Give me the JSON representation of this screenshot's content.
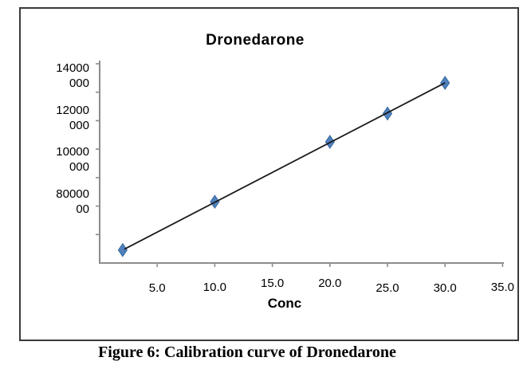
{
  "figure": {
    "caption": "Figure 6: Calibration curve of Dronedarone"
  },
  "chart_data": {
    "type": "scatter",
    "title": "Dronedarone",
    "xlabel": "Conc",
    "ylabel": "",
    "legend": "none",
    "grid": false,
    "xlim": [
      0,
      35
    ],
    "ylim": [
      4000000,
      14500000
    ],
    "x_ticks": [
      {
        "value": 5,
        "label": "5.0"
      },
      {
        "value": 10,
        "label": "10.0"
      },
      {
        "value": 15,
        "label": "15.0"
      },
      {
        "value": 20,
        "label": "20.0"
      },
      {
        "value": 25,
        "label": "25.0"
      },
      {
        "value": 30,
        "label": "30.0"
      },
      {
        "value": 35,
        "label": "35.0"
      }
    ],
    "y_ticks": [
      {
        "value": 14000000,
        "lines": [
          "14000",
          "000"
        ]
      },
      {
        "value": 12000000,
        "lines": [
          "12000",
          "000"
        ]
      },
      {
        "value": 10000000,
        "lines": [
          "10000",
          "000"
        ]
      },
      {
        "value": 8000000,
        "lines": [
          "80000",
          "00"
        ]
      }
    ],
    "series": [
      {
        "name": "Dronedarone",
        "marker": "diamond",
        "marker_color": "#4f81bd",
        "marker_edge_color": "#38699e",
        "trendline": true,
        "trendline_color": "#1a1a1a",
        "x": [
          2.0,
          10.0,
          20.0,
          25.0,
          30.0
        ],
        "y": [
          5700000,
          8000000,
          10850000,
          12200000,
          13660000
        ]
      }
    ],
    "colors": {
      "axis": "#8c8c8c",
      "text": "#000000",
      "frame_border": "#3a3a3a",
      "background": "#ffffff"
    }
  }
}
